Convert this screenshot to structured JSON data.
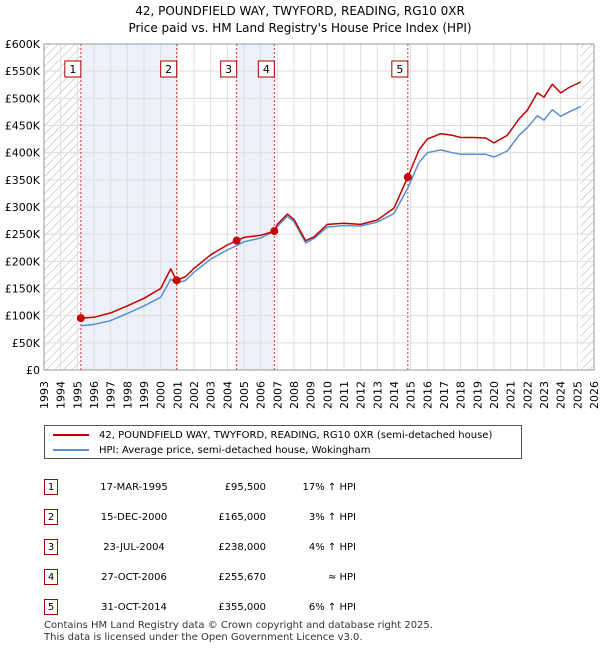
{
  "title_line1": "42, POUNDFIELD WAY, TWYFORD, READING, RG10 0XR",
  "title_line2": "Price paid vs. HM Land Registry's House Price Index (HPI)",
  "legend": {
    "property": "42, POUNDFIELD WAY, TWYFORD, READING, RG10 0XR (semi-detached house)",
    "hpi": "HPI: Average price, semi-detached house, Wokingham"
  },
  "colors": {
    "property": "#c00000",
    "hpi": "#5b8fd1",
    "shade": "#dde6f3",
    "marker_border": "#aa0000"
  },
  "sales": [
    {
      "num": "1",
      "date": "17-MAR-1995",
      "price": "£95,500",
      "hpi_rel": "17% ↑ HPI"
    },
    {
      "num": "2",
      "date": "15-DEC-2000",
      "price": "£165,000",
      "hpi_rel": "3% ↑ HPI"
    },
    {
      "num": "3",
      "date": "23-JUL-2004",
      "price": "£238,000",
      "hpi_rel": "4% ↑ HPI"
    },
    {
      "num": "4",
      "date": "27-OCT-2006",
      "price": "£255,670",
      "hpi_rel": "≈ HPI"
    },
    {
      "num": "5",
      "date": "31-OCT-2014",
      "price": "£355,000",
      "hpi_rel": "6% ↑ HPI"
    }
  ],
  "footer_line1": "Contains HM Land Registry data © Crown copyright and database right 2025.",
  "footer_line2": "This data is licensed under the Open Government Licence v3.0.",
  "chart_data": {
    "type": "line",
    "title": "Price paid vs. HM Land Registry's House Price Index (HPI)",
    "xlim": [
      1993,
      2026
    ],
    "ylim": [
      0,
      600000
    ],
    "x_ticks": [
      1993,
      1994,
      1995,
      1996,
      1997,
      1998,
      1999,
      2000,
      2001,
      2002,
      2003,
      2004,
      2005,
      2006,
      2007,
      2008,
      2009,
      2010,
      2011,
      2012,
      2013,
      2014,
      2015,
      2016,
      2017,
      2018,
      2019,
      2020,
      2021,
      2022,
      2023,
      2024,
      2025,
      2026
    ],
    "y_ticks": [
      0,
      50000,
      100000,
      150000,
      200000,
      250000,
      300000,
      350000,
      400000,
      450000,
      500000,
      550000,
      600000
    ],
    "y_tick_labels": [
      "£0",
      "£50K",
      "£100K",
      "£150K",
      "£200K",
      "£250K",
      "£300K",
      "£350K",
      "£400K",
      "£450K",
      "£500K",
      "£550K",
      "£600K"
    ],
    "hatched_ranges": [
      [
        1993,
        1995.2
      ],
      [
        2025.2,
        2026
      ]
    ],
    "grid": true,
    "series": [
      {
        "name": "42, POUNDFIELD WAY, TWYFORD, READING, RG10 0XR (semi-detached house)",
        "color": "#c00000",
        "x": [
          1995.21,
          1996,
          1997,
          1998,
          1999,
          2000,
          2000.6,
          2000.95,
          2001.5,
          2002,
          2003,
          2004,
          2004.56,
          2005,
          2006,
          2006.82,
          2007,
          2007.6,
          2008,
          2008.7,
          2009.2,
          2010,
          2011,
          2012,
          2013,
          2014,
          2014.83,
          2015.5,
          2016,
          2016.8,
          2017.5,
          2018,
          2018.8,
          2019.5,
          2020,
          2020.8,
          2021.5,
          2022,
          2022.6,
          2023,
          2023.5,
          2024,
          2024.5,
          2025.2
        ],
        "y": [
          95500,
          97000,
          105000,
          118000,
          132000,
          150000,
          186000,
          165000,
          172000,
          187000,
          212000,
          230000,
          238000,
          244000,
          248000,
          255670,
          268000,
          287000,
          277000,
          238000,
          245000,
          268000,
          270000,
          268000,
          276000,
          298000,
          355000,
          405000,
          425000,
          435000,
          432000,
          428000,
          428000,
          427000,
          418000,
          432000,
          462000,
          478000,
          510000,
          502000,
          526000,
          510000,
          520000,
          530000
        ]
      },
      {
        "name": "HPI: Average price, semi-detached house, Wokingham",
        "color": "#5b8fd1",
        "x": [
          1995.21,
          1996,
          1997,
          1998,
          1999,
          2000,
          2000.6,
          2000.95,
          2001.5,
          2002,
          2003,
          2004,
          2004.56,
          2005,
          2006,
          2006.82,
          2007,
          2007.6,
          2008,
          2008.7,
          2009.2,
          2010,
          2011,
          2012,
          2013,
          2014,
          2014.83,
          2015.5,
          2016,
          2016.8,
          2017.5,
          2018,
          2018.8,
          2019.5,
          2020,
          2020.8,
          2021.5,
          2022,
          2022.6,
          2023,
          2023.5,
          2024,
          2024.5,
          2025.2
        ],
        "y": [
          81600,
          84000,
          91000,
          104000,
          118000,
          134000,
          167000,
          160000,
          165000,
          180000,
          204000,
          221000,
          229000,
          236000,
          243000,
          255000,
          264000,
          283000,
          273000,
          234000,
          242000,
          263000,
          266000,
          265000,
          272000,
          288000,
          335000,
          382000,
          400000,
          405000,
          400000,
          397000,
          397000,
          397000,
          392000,
          403000,
          432000,
          446000,
          468000,
          460000,
          479000,
          467000,
          475000,
          485000
        ]
      }
    ],
    "sales_points": [
      {
        "label": "1",
        "x": 1995.21,
        "y": 95500
      },
      {
        "label": "2",
        "x": 2000.96,
        "y": 165000
      },
      {
        "label": "3",
        "x": 2004.56,
        "y": 238000
      },
      {
        "label": "4",
        "x": 2006.82,
        "y": 255670
      },
      {
        "label": "5",
        "x": 2014.83,
        "y": 355000
      }
    ]
  }
}
